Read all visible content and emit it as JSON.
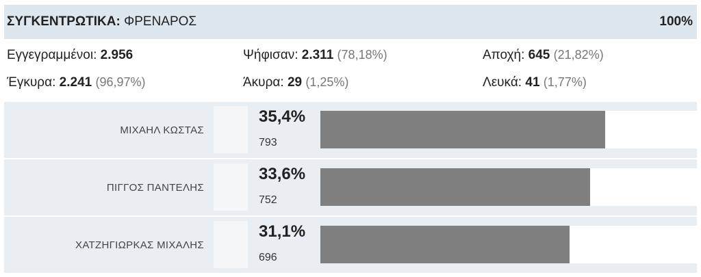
{
  "header": {
    "title_prefix": "ΣΥΓΚΕΝΤΡΩΤΙΚΑ:",
    "title_name": "ΦΡΕΝΑΡΟΣ",
    "percent": "100%"
  },
  "stats": {
    "registered_label": "Εγγεγραμμένοι:",
    "registered_value": "2.956",
    "voted_label": "Ψήφισαν:",
    "voted_value": "2.311",
    "voted_pct": "(78,18%)",
    "abstention_label": "Αποχή:",
    "abstention_value": "645",
    "abstention_pct": "(21,82%)",
    "valid_label": "Έγκυρα:",
    "valid_value": "2.241",
    "valid_pct": "(96,97%)",
    "invalid_label": "Άκυρα:",
    "invalid_value": "29",
    "invalid_pct": "(1,25%)",
    "blank_label": "Λευκά:",
    "blank_value": "41",
    "blank_pct": "(1,77%)"
  },
  "candidates": [
    {
      "name": "ΜΙΧΑΗΛ ΚΩΣΤΑΣ",
      "percent": "35,4%",
      "votes": "793",
      "share": 0.756
    },
    {
      "name": "ΠΙΓΓΟΣ ΠΑΝΤΕΛΗΣ",
      "percent": "33,6%",
      "votes": "752",
      "share": 0.716
    },
    {
      "name": "ΧΑΤΖΗΓΙΩΡΚΑΣ ΜΙΧΑΛΗΣ",
      "percent": "31,1%",
      "votes": "696",
      "share": 0.662
    }
  ],
  "colors": {
    "header_bg": "#dfe7ee",
    "row_bg": "#e8eef2",
    "bar": "#7f7f7f"
  }
}
